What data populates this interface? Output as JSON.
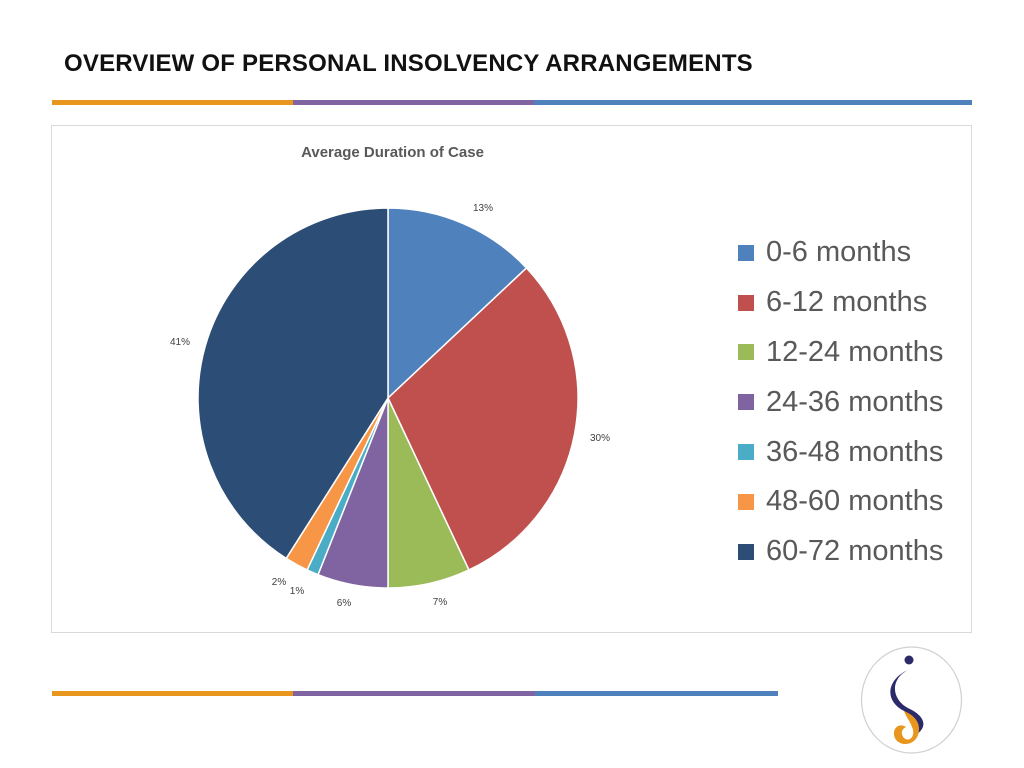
{
  "slide": {
    "title": "OVERVIEW OF PERSONAL INSOLVENCY ARRANGEMENTS"
  },
  "decor": {
    "rule_colors": [
      "#e8961e",
      "#8064a2",
      "#4f81bd"
    ]
  },
  "chart_data": {
    "type": "pie",
    "title": "Average Duration of Case",
    "categories": [
      "0-6 months",
      "6-12 months",
      "12-24 months",
      "24-36 months",
      "36-48 months",
      "48-60 months",
      "60-72 months"
    ],
    "values": [
      13,
      30,
      7,
      6,
      1,
      2,
      41
    ],
    "labels": [
      "13%",
      "30%",
      "7%",
      "6%",
      "1%",
      "2%",
      "41%"
    ],
    "colors": [
      "#4f81bd",
      "#c0504d",
      "#9bbb59",
      "#8064a2",
      "#4bacc6",
      "#f79646",
      "#2c4d75"
    ],
    "legend_position": "right",
    "start_angle": "top, clockwise"
  },
  "logo": {
    "name": "logo-emblem",
    "colors": [
      "#2b2a6b",
      "#e8961e"
    ]
  }
}
